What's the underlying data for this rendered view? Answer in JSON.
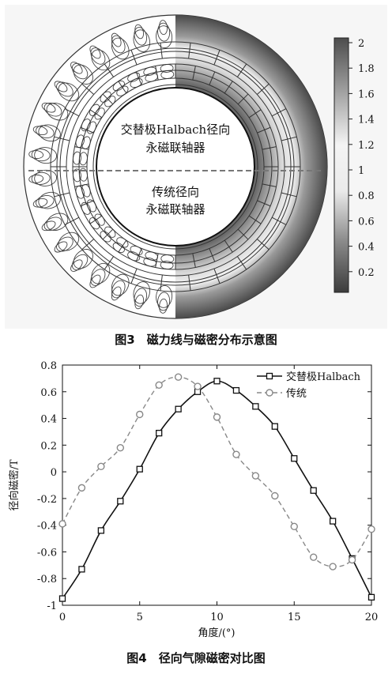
{
  "figure3": {
    "caption": "图3　磁力线与磁密分布示意图",
    "label_top_line1": "交替极Halbach径向",
    "label_top_line2": "永磁联轴器",
    "label_bottom_line1": "传统径向",
    "label_bottom_line2": "永磁联轴器",
    "colorbar_ticks": [
      "2",
      "1.8",
      "1.6",
      "1.4",
      "1.2",
      "1",
      "0.8",
      "0.6",
      "0.4",
      "0.2"
    ]
  },
  "figure4": {
    "caption": "图4　径向气隙磁密对比图",
    "chart_data": {
      "type": "line",
      "xlabel": "角度/(°)",
      "ylabel": "径向磁密/T",
      "xlim": [
        0,
        20
      ],
      "ylim": [
        -1,
        0.8
      ],
      "xticks": [
        0,
        5,
        10,
        15,
        20
      ],
      "yticks": [
        0.8,
        0.6,
        0.4,
        0.2,
        0,
        -0.2,
        -0.4,
        -0.6,
        -0.8,
        -1
      ],
      "grid": false,
      "legend_position": "top-right",
      "series": [
        {
          "name": "交替极Halbach",
          "color": "#111111",
          "line_style": "solid",
          "marker": "square",
          "x": [
            0,
            1.25,
            2.5,
            3.75,
            5,
            6.25,
            7.5,
            8.75,
            10,
            11.25,
            12.5,
            13.75,
            15,
            16.25,
            17.5,
            18.75,
            20
          ],
          "y": [
            -0.95,
            -0.73,
            -0.44,
            -0.22,
            0.02,
            0.29,
            0.47,
            0.6,
            0.68,
            0.61,
            0.49,
            0.34,
            0.1,
            -0.14,
            -0.37,
            -0.65,
            -0.94
          ]
        },
        {
          "name": "传统",
          "color": "#888888",
          "line_style": "dashed",
          "marker": "circle",
          "x": [
            0,
            1.25,
            2.5,
            3.75,
            5,
            6.25,
            7.5,
            8.75,
            10,
            11.25,
            12.5,
            13.75,
            15,
            16.25,
            17.5,
            18.75,
            20
          ],
          "y": [
            -0.39,
            -0.12,
            0.04,
            0.18,
            0.43,
            0.65,
            0.71,
            0.64,
            0.41,
            0.13,
            -0.03,
            -0.18,
            -0.41,
            -0.64,
            -0.71,
            -0.66,
            -0.43
          ]
        }
      ]
    }
  }
}
